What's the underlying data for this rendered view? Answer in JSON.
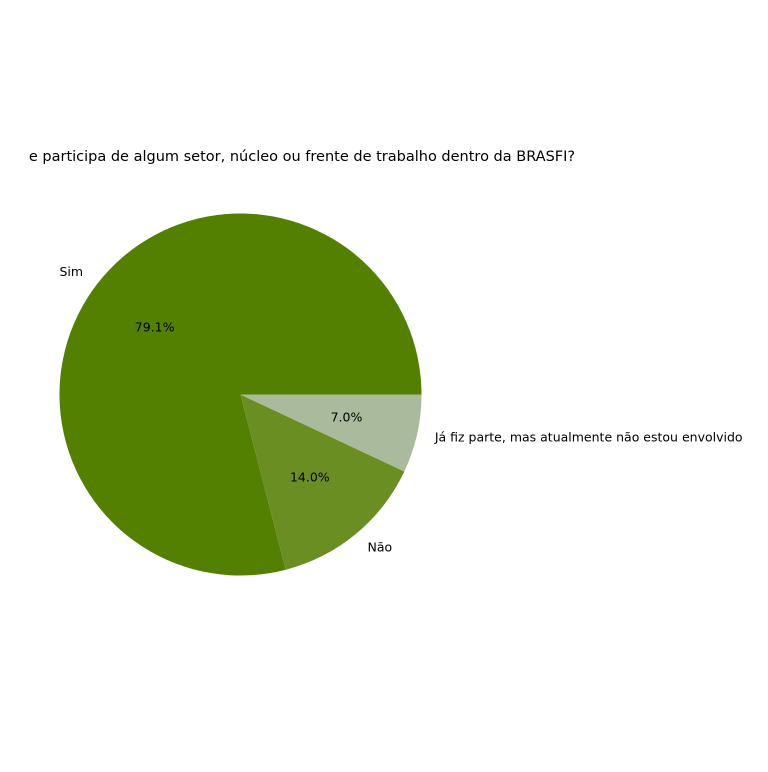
{
  "chart_data": {
    "type": "pie",
    "title": "e participa de algum setor, núcleo ou frente de trabalho dentro da BRASFI?",
    "slices": [
      {
        "label": "Sim",
        "value": 79.1,
        "percent_label": "79.1%",
        "color": "#538000"
      },
      {
        "label": "Não",
        "value": 14.0,
        "percent_label": "14.0%",
        "color": "#6b8e23"
      },
      {
        "label": "Já fiz parte, mas atualmente não estou envolvido",
        "value": 7.0,
        "percent_label": "7.0%",
        "color": "#a9ba9d"
      }
    ],
    "start_angle_deg": 0,
    "direction": "counterclockwise",
    "legend": "none"
  }
}
